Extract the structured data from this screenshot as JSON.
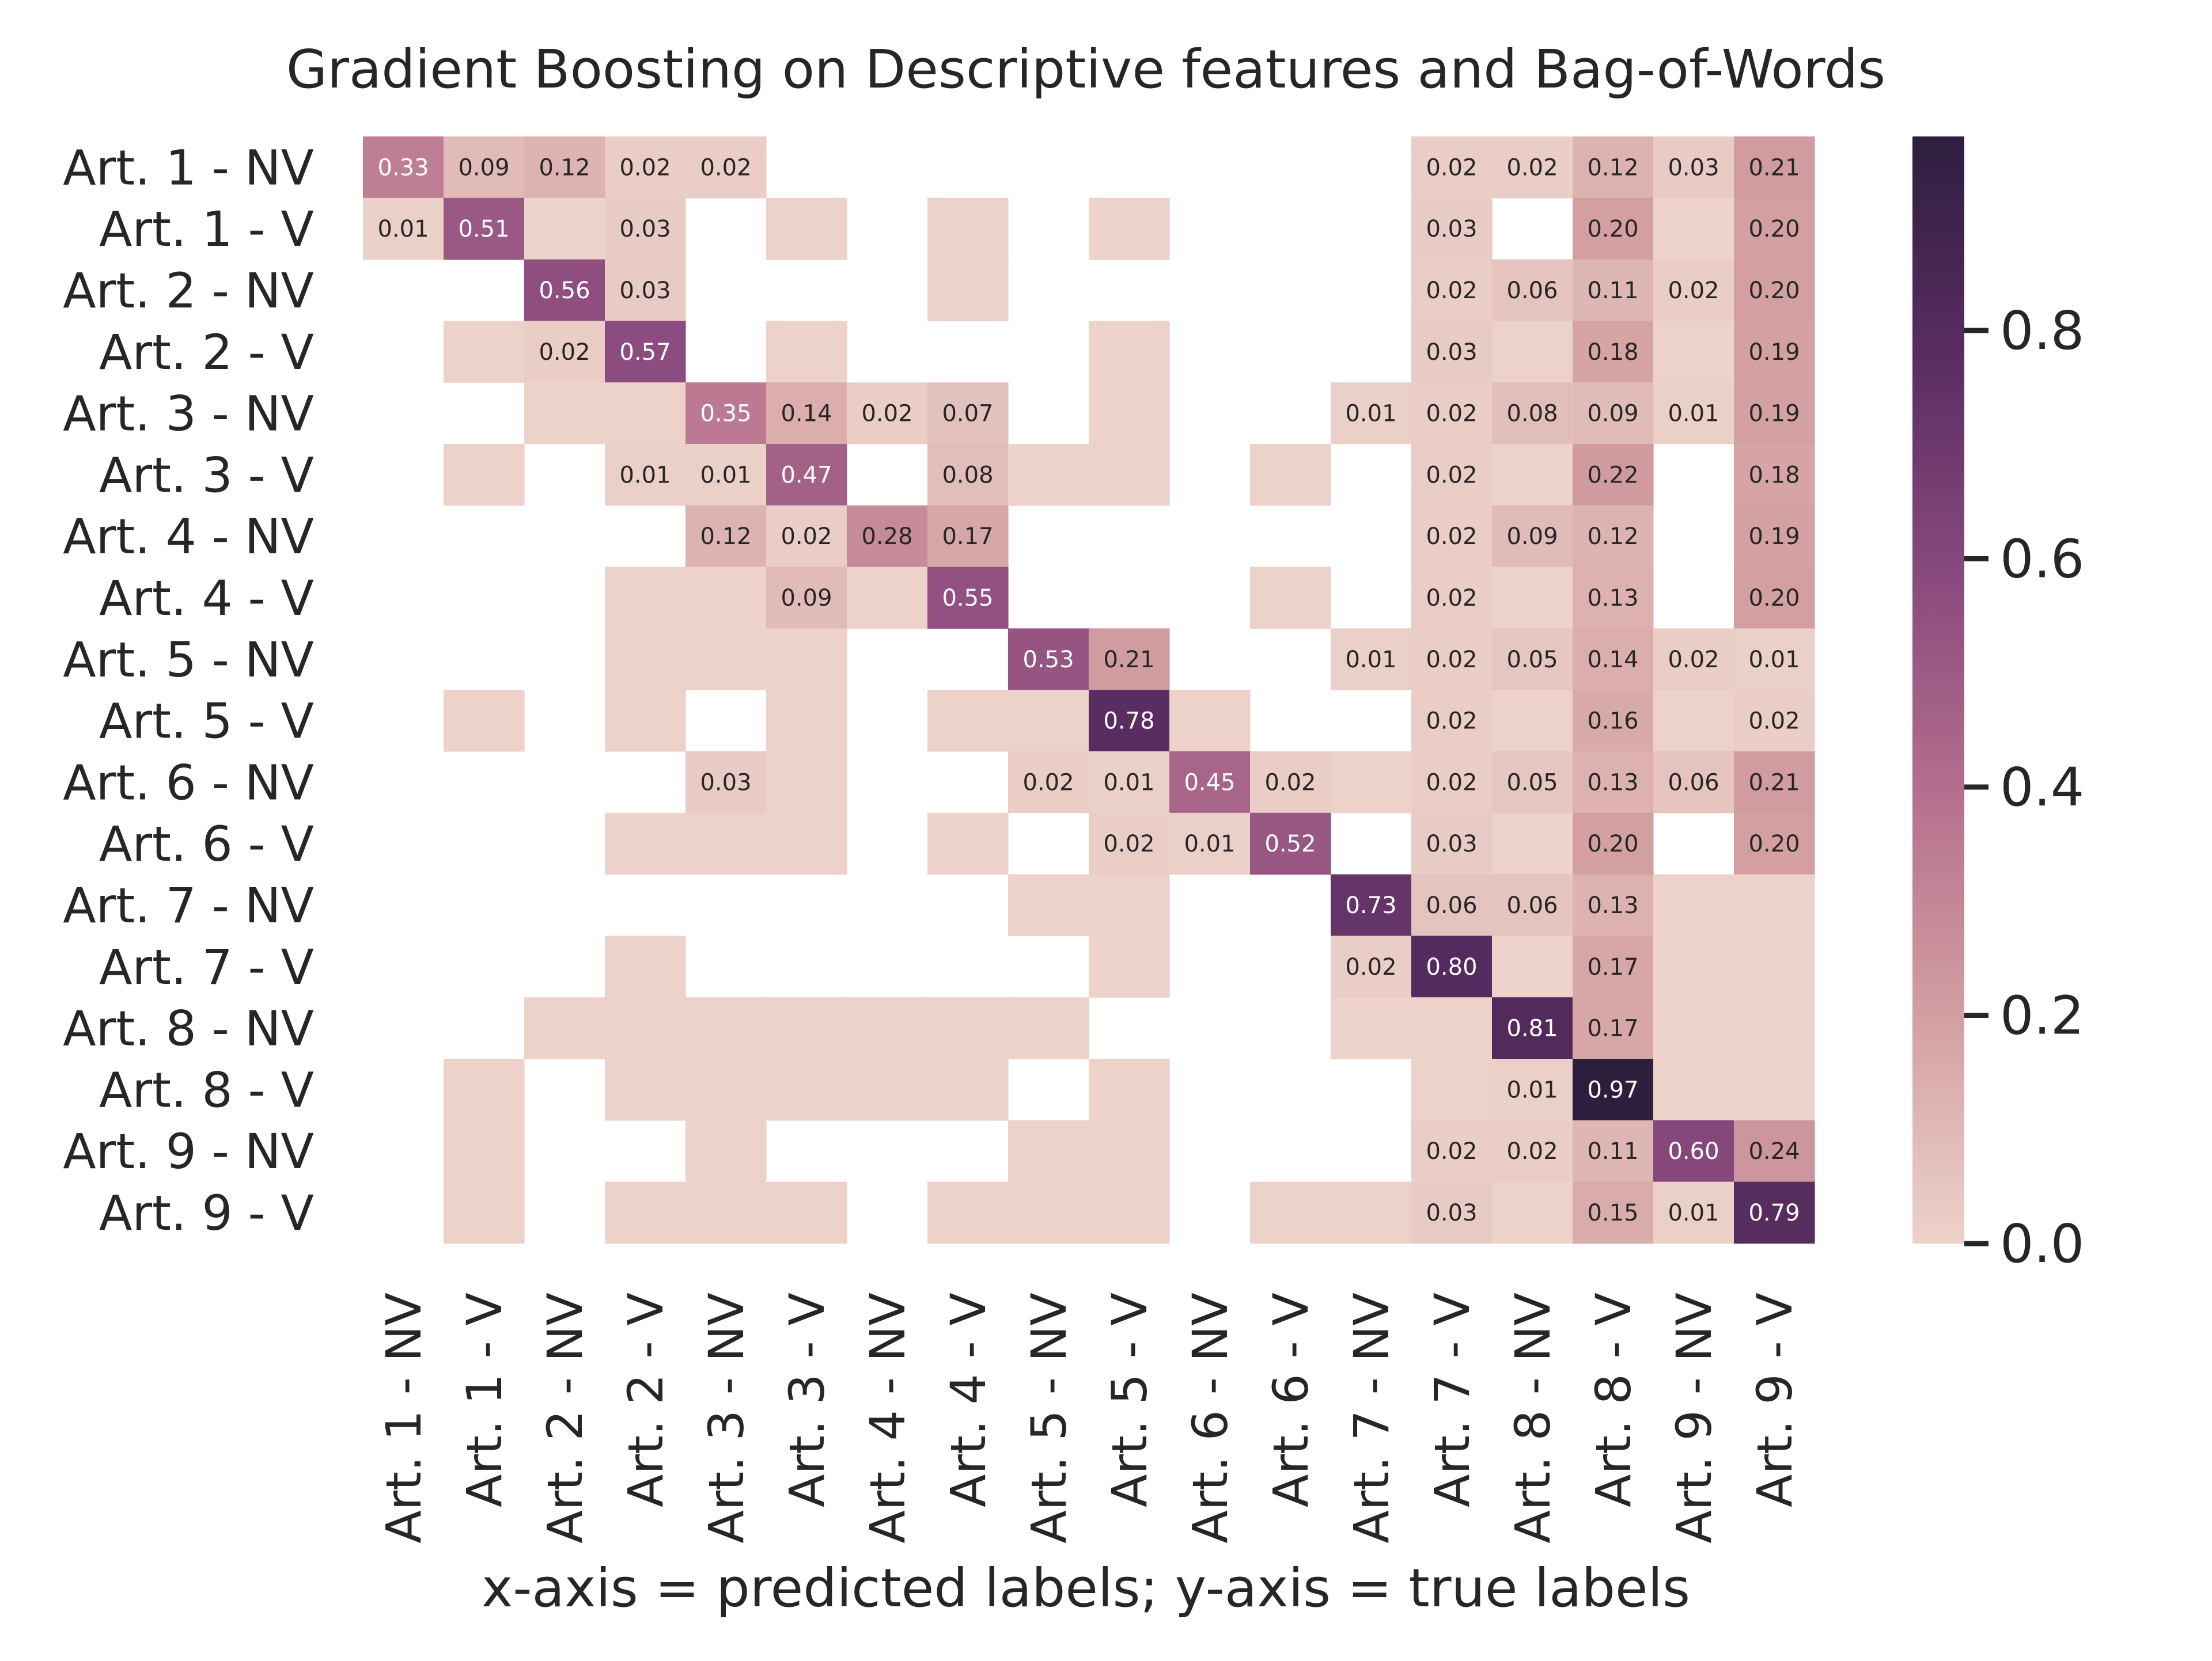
{
  "chart_data": {
    "type": "heatmap",
    "title": "Gradient Boosting on Descriptive features and Bag-of-Words",
    "xlabel": "x-axis = predicted labels; y-axis = true labels",
    "ylabel": "",
    "rows": [
      "Art. 1 - NV",
      "Art. 1 - V",
      "Art. 2 - NV",
      "Art. 2 - V",
      "Art. 3 - NV",
      "Art. 3 - V",
      "Art. 4 - NV",
      "Art. 4 - V",
      "Art. 5 - NV",
      "Art. 5 - V",
      "Art. 6 - NV",
      "Art. 6 - V",
      "Art. 7 - NV",
      "Art. 7 - V",
      "Art. 8 - NV",
      "Art. 8 - V",
      "Art. 9 - NV",
      "Art. 9 - V"
    ],
    "columns": [
      "Art. 1 - NV",
      "Art. 1 - V",
      "Art. 2 - NV",
      "Art. 2 - V",
      "Art. 3 - NV",
      "Art. 3 - V",
      "Art. 4 - NV",
      "Art. 4 - V",
      "Art. 5 - NV",
      "Art. 5 - V",
      "Art. 6 - NV",
      "Art. 6 - V",
      "Art. 7 - NV",
      "Art. 7 - V",
      "Art. 8 - NV",
      "Art. 8 - V",
      "Art. 9 - NV",
      "Art. 9 - V"
    ],
    "values": [
      [
        0.33,
        0.09,
        0.12,
        0.02,
        0.02,
        null,
        null,
        null,
        null,
        null,
        null,
        null,
        null,
        0.02,
        0.02,
        0.12,
        0.03,
        0.21
      ],
      [
        0.01,
        0.51,
        0.004,
        0.03,
        null,
        0.004,
        null,
        0.004,
        null,
        0.004,
        null,
        null,
        null,
        0.03,
        null,
        0.2,
        0.004,
        0.2
      ],
      [
        null,
        null,
        0.56,
        0.03,
        null,
        null,
        null,
        0.004,
        null,
        null,
        null,
        null,
        null,
        0.02,
        0.06,
        0.11,
        0.02,
        0.2
      ],
      [
        null,
        0.004,
        0.02,
        0.57,
        null,
        0.004,
        null,
        null,
        null,
        0.004,
        null,
        null,
        null,
        0.03,
        0.004,
        0.18,
        0.004,
        0.19
      ],
      [
        null,
        null,
        0.004,
        0.004,
        0.35,
        0.14,
        0.02,
        0.07,
        null,
        0.004,
        null,
        null,
        0.01,
        0.02,
        0.08,
        0.09,
        0.01,
        0.19
      ],
      [
        null,
        0.004,
        null,
        0.01,
        0.01,
        0.47,
        null,
        0.08,
        0.004,
        0.004,
        null,
        0.004,
        null,
        0.02,
        0.004,
        0.22,
        null,
        0.18
      ],
      [
        null,
        null,
        null,
        null,
        0.12,
        0.02,
        0.28,
        0.17,
        null,
        null,
        null,
        null,
        null,
        0.02,
        0.09,
        0.12,
        null,
        0.19
      ],
      [
        null,
        null,
        null,
        0.004,
        0.004,
        0.09,
        0.004,
        0.55,
        null,
        null,
        null,
        0.004,
        null,
        0.02,
        0.004,
        0.13,
        null,
        0.2
      ],
      [
        null,
        null,
        null,
        0.004,
        0.004,
        0.004,
        null,
        null,
        0.53,
        0.21,
        null,
        null,
        0.01,
        0.02,
        0.05,
        0.14,
        0.02,
        0.01
      ],
      [
        null,
        0.004,
        null,
        0.004,
        null,
        0.004,
        null,
        0.004,
        0.004,
        0.78,
        0.004,
        null,
        null,
        0.02,
        0.004,
        0.16,
        0.004,
        0.02
      ],
      [
        null,
        null,
        null,
        null,
        0.03,
        0.004,
        null,
        null,
        0.02,
        0.01,
        0.45,
        0.02,
        0.004,
        0.02,
        0.05,
        0.13,
        0.06,
        0.21
      ],
      [
        null,
        null,
        null,
        0.004,
        0.004,
        0.004,
        null,
        0.004,
        null,
        0.02,
        0.01,
        0.52,
        null,
        0.03,
        0.004,
        0.2,
        null,
        0.2
      ],
      [
        null,
        null,
        null,
        null,
        null,
        null,
        null,
        null,
        0.004,
        0.004,
        null,
        null,
        0.73,
        0.06,
        0.06,
        0.13,
        0.004,
        0.004
      ],
      [
        null,
        null,
        null,
        0.004,
        null,
        null,
        null,
        null,
        null,
        0.004,
        null,
        null,
        0.02,
        0.8,
        0.004,
        0.17,
        0.004,
        0.004
      ],
      [
        null,
        null,
        0.004,
        0.004,
        0.004,
        0.004,
        0.004,
        0.004,
        0.004,
        null,
        null,
        null,
        0.004,
        0.004,
        0.81,
        0.17,
        0.004,
        0.004
      ],
      [
        null,
        0.004,
        null,
        0.004,
        0.004,
        0.004,
        0.004,
        0.004,
        null,
        0.004,
        null,
        null,
        null,
        0.004,
        0.01,
        0.97,
        0.004,
        0.004
      ],
      [
        null,
        0.004,
        null,
        null,
        0.004,
        null,
        null,
        null,
        0.004,
        0.004,
        null,
        null,
        null,
        0.02,
        0.02,
        0.11,
        0.6,
        0.24
      ],
      [
        null,
        0.004,
        null,
        0.004,
        0.004,
        0.004,
        null,
        0.004,
        0.004,
        0.004,
        null,
        0.004,
        0.004,
        0.03,
        0.004,
        0.15,
        0.01,
        0.79
      ]
    ],
    "color_range": [
      0.0,
      0.97
    ],
    "colorbar_ticks": [
      0.0,
      0.2,
      0.4,
      0.6,
      0.8
    ],
    "colorbar_tick_labels": [
      "0.0",
      "0.2",
      "0.4",
      "0.6",
      "0.8"
    ],
    "colormap": [
      "#ecd3ca",
      "#d4a0a2",
      "#b5718e",
      "#8a4a7e",
      "#5a2d62",
      "#2d1e3e"
    ],
    "annotation_min_label": 0.005,
    "annotation_dark_threshold": 0.3,
    "annotation_dark_text_color": "#262626",
    "annotation_light_text_color": "#ffffff",
    "legend": "colorbar-right",
    "grid": false
  }
}
